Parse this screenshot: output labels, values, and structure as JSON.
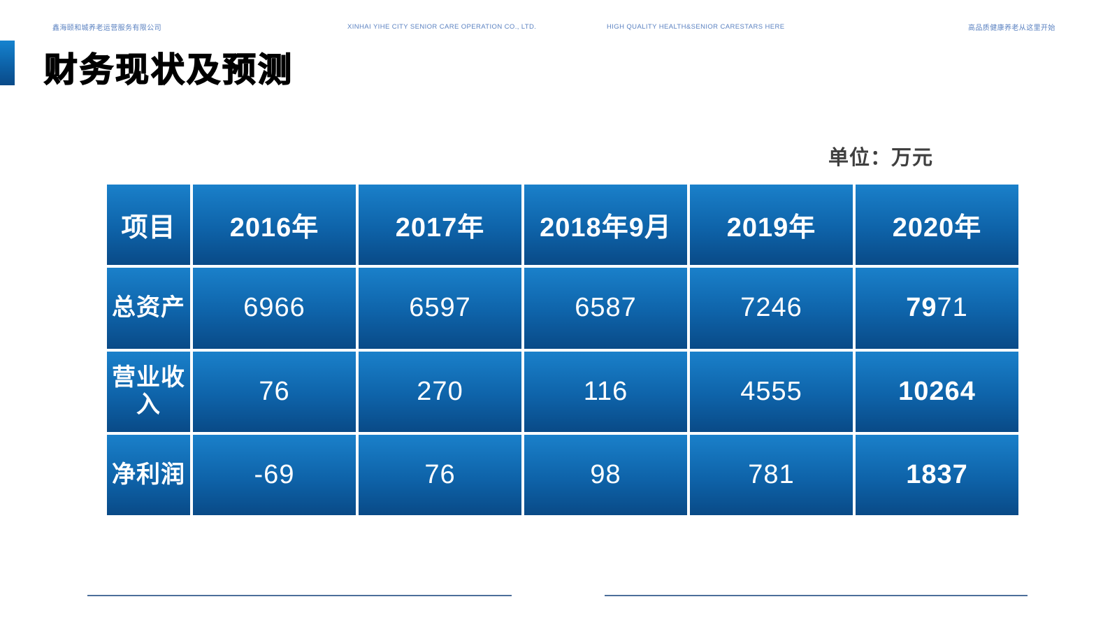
{
  "topbar": {
    "company_cn": "鑫海颐和城养老运营服务有限公司",
    "company_en": "XINHAI YIHE CITY SENIOR CARE OPERATION CO., LTD.",
    "slogan_en": "HIGH QUALITY HEALTH&SENIOR CARESTARS HERE",
    "slogan_cn": "高品质健康养老从这里开始"
  },
  "title": "财务现状及预测",
  "unit_label": "单位：万元",
  "table": {
    "columns": [
      "项目",
      "2016年",
      "2017年",
      "2018年9月",
      "2019年",
      "2020年"
    ],
    "rows": [
      {
        "label": "总资产",
        "cells": [
          "6966",
          "6597",
          "6587",
          "7246"
        ],
        "final": {
          "bold": "79",
          "rest": "71"
        }
      },
      {
        "label": "营业收入",
        "cells": [
          "76",
          "270",
          "116",
          "4555"
        ],
        "final": {
          "bold": "10264",
          "rest": ""
        }
      },
      {
        "label": "净利润",
        "cells": [
          "-69",
          "76",
          "98",
          "781"
        ],
        "final": {
          "bold": "1837",
          "rest": ""
        }
      }
    ]
  },
  "colors": {
    "cell_gradient_top": "#1a80ca",
    "cell_gradient_mid": "#0e63a9",
    "cell_gradient_bottom": "#094a87",
    "accent_bar": "#0d62a8",
    "topbar_text": "#5b82c1",
    "unit_text": "#3f3f3f",
    "bottom_rule": "#4c6f9a"
  }
}
